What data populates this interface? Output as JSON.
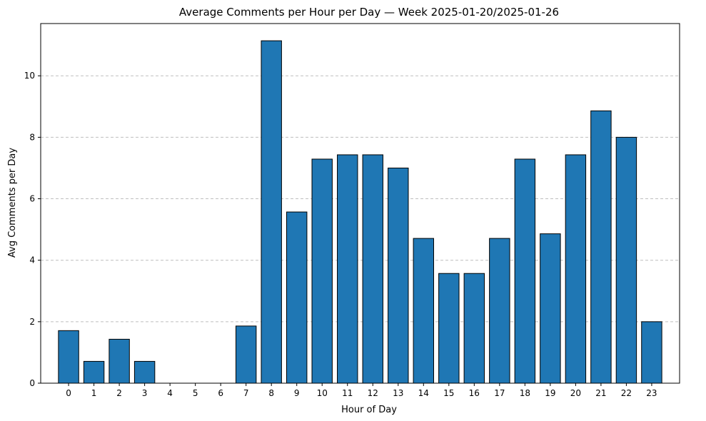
{
  "chart_data": {
    "type": "bar",
    "title": "Average Comments per Hour per Day — Week 2025-01-20/2025-01-26",
    "xlabel": "Hour of Day",
    "ylabel": "Avg Comments per Day",
    "categories": [
      "0",
      "1",
      "2",
      "3",
      "4",
      "5",
      "6",
      "7",
      "8",
      "9",
      "10",
      "11",
      "12",
      "13",
      "14",
      "15",
      "16",
      "17",
      "18",
      "19",
      "20",
      "21",
      "22",
      "23"
    ],
    "values": [
      1.71,
      0.71,
      1.43,
      0.71,
      0,
      0,
      0,
      1.86,
      11.14,
      5.57,
      7.29,
      7.43,
      7.43,
      7.0,
      4.71,
      3.57,
      3.57,
      4.71,
      7.29,
      4.86,
      7.43,
      8.86,
      8.0,
      2.0
    ],
    "ylim": [
      0,
      11.7
    ],
    "yticks": [
      0,
      2,
      4,
      6,
      8,
      10
    ],
    "grid": "y-dashed",
    "bar_color": "#1f77b4",
    "edge_color": "#000000"
  }
}
